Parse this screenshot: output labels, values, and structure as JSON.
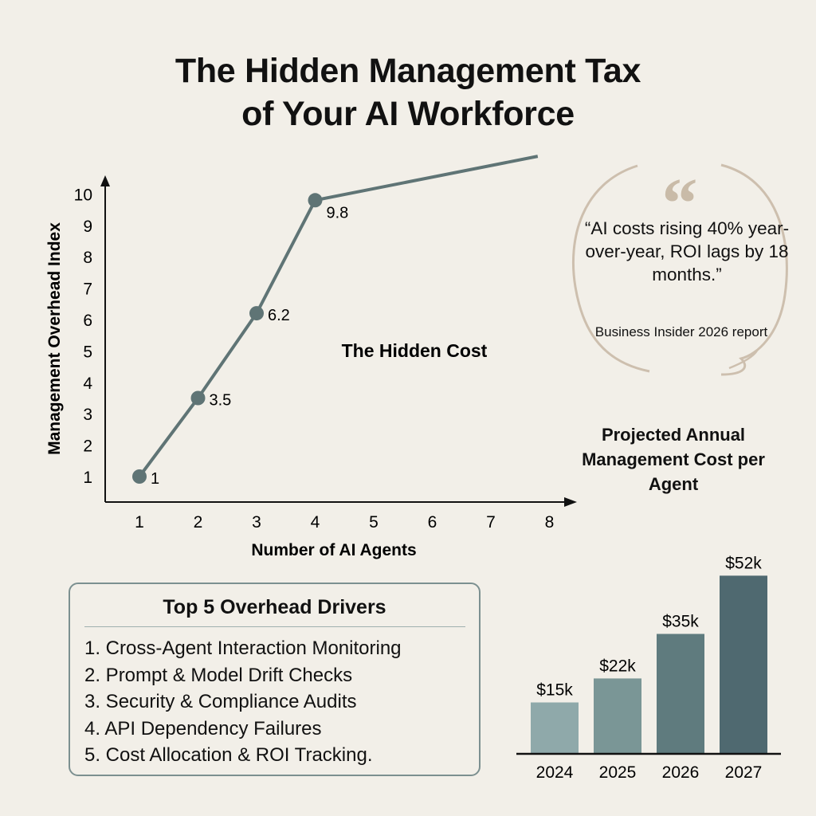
{
  "title_line1": "The Hidden Management Tax",
  "title_line2": "of Your AI Workforce",
  "colors": {
    "background": "#f2efe8",
    "line": "#5f7475",
    "bubble": "#cdbfae",
    "box_border": "#7c9090",
    "bars": [
      "#8fa9aa",
      "#7a9696",
      "#5f7b7e",
      "#4f6970"
    ]
  },
  "chart_data": [
    {
      "type": "line",
      "xlabel": "Number of AI Agents",
      "ylabel": "Management Overhead Index",
      "annotation": "The Hidden Cost",
      "x_ticks": [
        1,
        2,
        3,
        4,
        5,
        6,
        7,
        8
      ],
      "y_ticks": [
        1,
        2,
        3,
        4,
        5,
        6,
        7,
        8,
        9,
        10
      ],
      "grid": false,
      "series": [
        {
          "points": [
            {
              "x": 1,
              "y": 1,
              "label": "1"
            },
            {
              "x": 2,
              "y": 3.5,
              "label": "3.5"
            },
            {
              "x": 3,
              "y": 6.2,
              "label": "6.2"
            },
            {
              "x": 4,
              "y": 9.8,
              "label": "9.8"
            },
            {
              "x": 7.8,
              "y": 11.2,
              "label": ""
            }
          ]
        }
      ]
    },
    {
      "type": "bar",
      "title": "Projected Annual Management Cost per Agent",
      "categories": [
        "2024",
        "2025",
        "2026",
        "2027"
      ],
      "values": [
        15,
        22,
        35,
        52
      ],
      "labels": [
        "$15k",
        "$22k",
        "$35k",
        "$52k"
      ],
      "unit": "thousand USD"
    }
  ],
  "quote": {
    "icon": "quote-mark-icon",
    "text": "“AI costs rising 40% year-over-year, ROI lags by 18 months.”",
    "source": "Business Insider 2026 report"
  },
  "drivers": {
    "title": "Top 5 Overhead Drivers",
    "items": [
      "1. Cross-Agent Interaction Monitoring",
      "2. Prompt & Model Drift Checks",
      "3. Security & Compliance Audits",
      "4. API Dependency Failures",
      "5. Cost Allocation & ROI Tracking."
    ]
  }
}
